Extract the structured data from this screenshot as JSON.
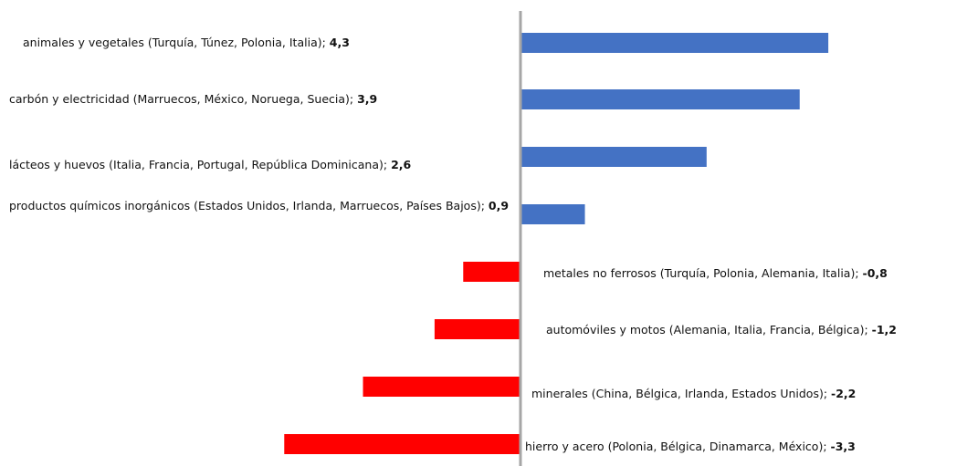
{
  "chart_data": {
    "type": "barh",
    "categories": [
      "animales y vegetales (Turquía, Túnez, Polonia, Italia);",
      "carbón y electricidad (Marruecos, México, Noruega, Suecia);",
      "lácteos y huevos (Italia, Francia, Portugal, República Dominicana);",
      "productos químicos inorgánicos (Estados Unidos, Irlanda, Marruecos, Países Bajos);",
      "metales no ferrosos (Turquía, Polonia, Alemania, Italia);",
      "automóviles y motos (Alemania, Italia, Francia, Bélgica);",
      "minerales (China, Bélgica, Irlanda, Estados Unidos);",
      "hierro y acero (Polonia, Bélgica, Dinamarca, México);"
    ],
    "values": [
      4.3,
      3.9,
      2.6,
      0.9,
      -0.8,
      -1.2,
      -2.2,
      -3.3
    ],
    "value_labels": [
      "4,3",
      "3,9",
      "2,6",
      "0,9",
      "-0,8",
      "-1,2",
      "-2,2",
      "-3,3"
    ],
    "colors": [
      "#4472c4",
      "#4472c4",
      "#4472c4",
      "#4472c4",
      "#ff0000",
      "#ff0000",
      "#ff0000",
      "#ff0000"
    ]
  }
}
